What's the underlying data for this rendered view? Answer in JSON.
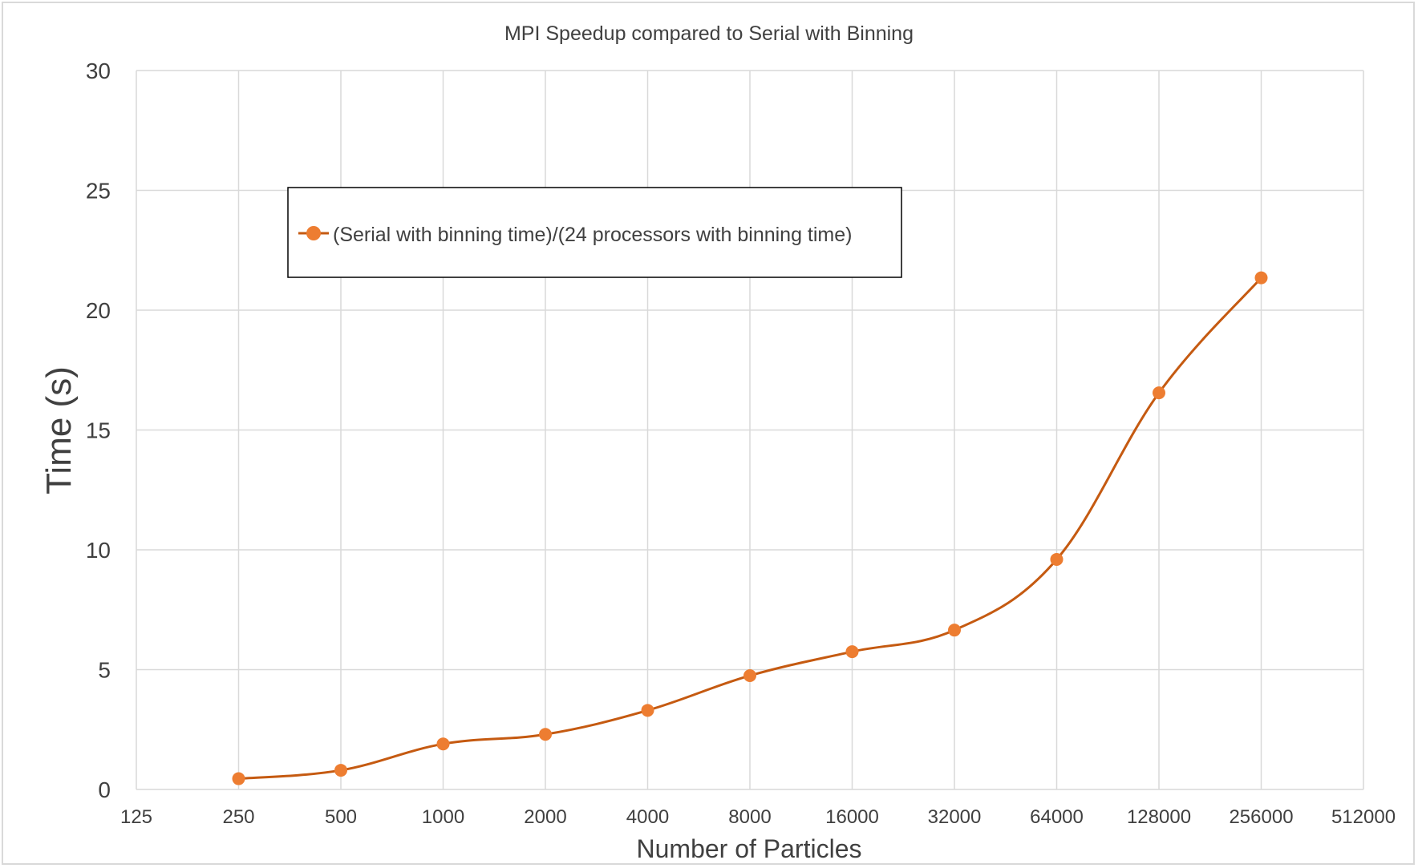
{
  "chart_data": {
    "type": "line",
    "title": "MPI Speedup compared to Serial with Binning",
    "xlabel": "Number of Particles",
    "ylabel": "Time (s)",
    "x_scale": "log2",
    "x_ticks": [
      "125",
      "250",
      "500",
      "1000",
      "2000",
      "4000",
      "8000",
      "16000",
      "32000",
      "64000",
      "128000",
      "256000",
      "512000"
    ],
    "y_ticks": [
      "0",
      "5",
      "10",
      "15",
      "20",
      "25",
      "30"
    ],
    "ylim": [
      0,
      30
    ],
    "grid": true,
    "legend_position": "top-left",
    "series": [
      {
        "name": "(Serial with binning time)/(24 processors with binning time)",
        "color": "#ed7d31",
        "line_color": "#c55a11",
        "x": [
          250,
          500,
          1000,
          2000,
          4000,
          8000,
          16000,
          32000,
          64000,
          128000,
          256000
        ],
        "y": [
          0.45,
          0.8,
          1.9,
          2.3,
          3.3,
          4.75,
          5.75,
          6.65,
          9.6,
          16.55,
          21.35
        ]
      }
    ]
  }
}
